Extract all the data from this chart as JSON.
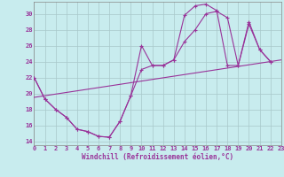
{
  "background_color": "#c8ecee",
  "grid_color": "#a8c8ca",
  "line_color": "#993399",
  "xlim": [
    0,
    23
  ],
  "ylim": [
    13.5,
    31.5
  ],
  "yticks": [
    14,
    16,
    18,
    20,
    22,
    24,
    26,
    28,
    30
  ],
  "xticks": [
    0,
    1,
    2,
    3,
    4,
    5,
    6,
    7,
    8,
    9,
    10,
    11,
    12,
    13,
    14,
    15,
    16,
    17,
    18,
    19,
    20,
    21,
    22,
    23
  ],
  "xlabel": "Windchill (Refroidissement éolien,°C)",
  "curve1_x": [
    0,
    1,
    2,
    3,
    4,
    5,
    6,
    7,
    8,
    9,
    10,
    11,
    12,
    13,
    14,
    15,
    16,
    17,
    18,
    19,
    20,
    21,
    22
  ],
  "curve1_y": [
    22,
    19.3,
    18,
    17,
    15.5,
    15.2,
    14.6,
    14.5,
    16.5,
    19.7,
    26.0,
    23.5,
    23.5,
    24.2,
    29.8,
    31.0,
    31.2,
    30.4,
    23.5,
    23.5,
    29.0,
    25.5,
    24.0
  ],
  "curve2_x": [
    0,
    1,
    2,
    3,
    4,
    5,
    6,
    7,
    8,
    9,
    10,
    11,
    12,
    13,
    14,
    15,
    16,
    17,
    18,
    19,
    20,
    21,
    22
  ],
  "curve2_y": [
    22,
    19.3,
    18,
    17,
    15.5,
    15.2,
    14.6,
    14.5,
    16.5,
    19.7,
    23.0,
    23.5,
    23.5,
    24.2,
    26.5,
    28.0,
    30.0,
    30.3,
    29.5,
    23.5,
    28.7,
    25.5,
    24.0
  ],
  "line3_x": [
    0,
    23
  ],
  "line3_y": [
    19.5,
    24.2
  ]
}
